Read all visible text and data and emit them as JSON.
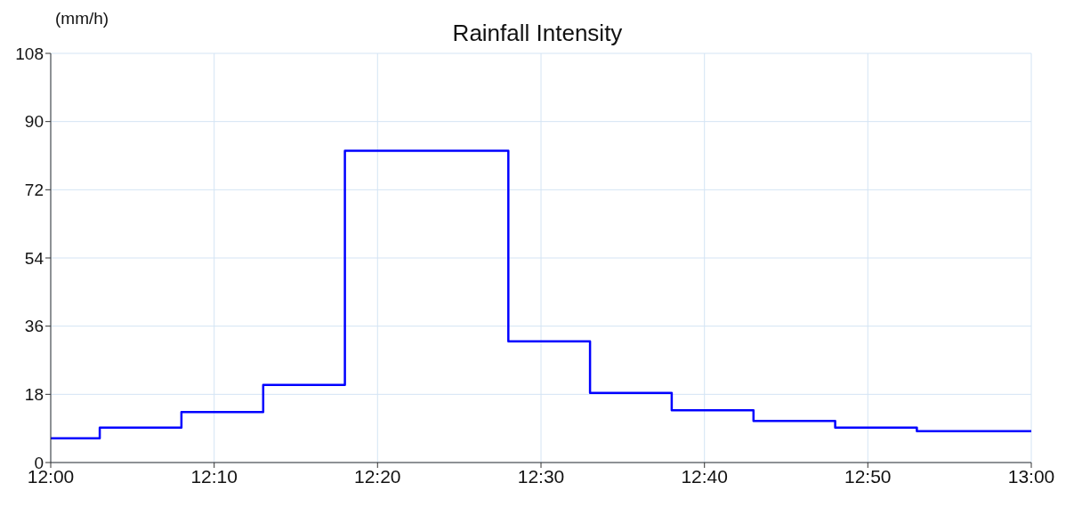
{
  "chart_data": {
    "type": "step",
    "title": "Rainfall Intensity",
    "ylabel": "(mm/h)",
    "x": [
      12,
      12.05,
      12.1333,
      12.2167,
      12.3,
      12.4667,
      12.55,
      12.6333,
      12.7167,
      12.8,
      12.8833,
      13
    ],
    "series": [
      {
        "color": "#0000ff",
        "values": [
          6.4,
          9.2,
          13.3,
          20.5,
          82.3,
          32,
          18.4,
          13.8,
          11,
          9.2,
          8.3,
          8.3
        ]
      }
    ],
    "xlim": [
      12,
      13
    ],
    "xticks": [
      {
        "value": 12,
        "label": "12:00"
      },
      {
        "value": 12.1667,
        "label": "12:10"
      },
      {
        "value": 12.3333,
        "label": "12:20"
      },
      {
        "value": 12.5,
        "label": "12:30"
      },
      {
        "value": 12.6667,
        "label": "12:40"
      },
      {
        "value": 12.8333,
        "label": "12:50"
      },
      {
        "value": 13,
        "label": "13:00"
      }
    ],
    "ylim": [
      0,
      108
    ],
    "yticks": [
      0,
      18,
      36,
      54,
      72,
      90,
      108
    ],
    "grid": true,
    "legend": false,
    "marker": "none",
    "line_style": "solid"
  }
}
